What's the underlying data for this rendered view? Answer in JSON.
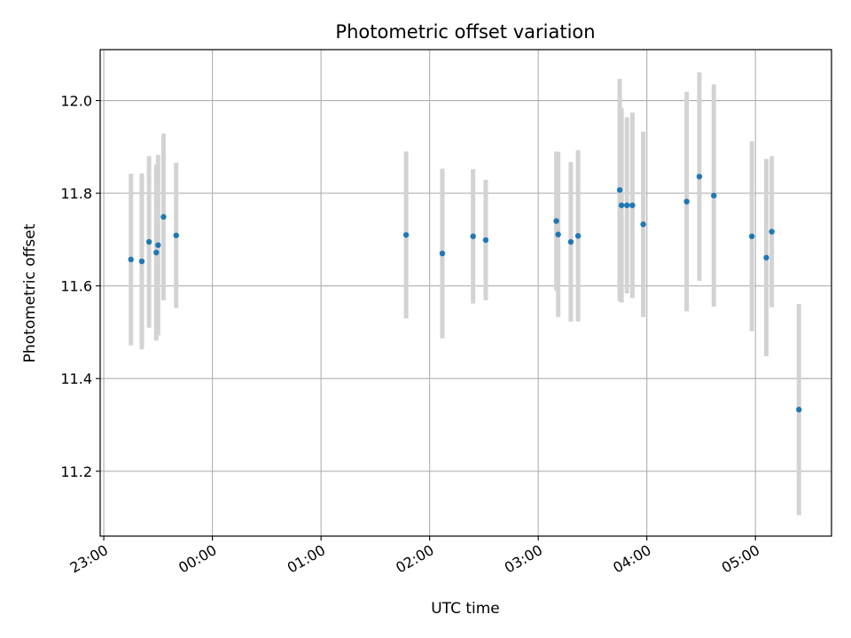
{
  "chart_data": {
    "type": "scatter",
    "title": "Photometric offset variation",
    "xlabel": "UTC time",
    "ylabel": "Photometric offset",
    "x_axis_type": "time",
    "xlim": [
      "22:58",
      "05:42"
    ],
    "ylim": [
      11.06,
      12.11
    ],
    "xticks": [
      "23:00",
      "00:00",
      "01:00",
      "02:00",
      "03:00",
      "04:00",
      "05:00"
    ],
    "yticks": [
      11.2,
      11.4,
      11.6,
      11.8,
      12.0
    ],
    "grid": true,
    "errorbar_color": "#d3d3d3",
    "marker_color": "#1f77b4",
    "points": [
      {
        "time": "23:15",
        "y": 11.657,
        "err": 0.185
      },
      {
        "time": "23:21",
        "y": 11.653,
        "err": 0.19
      },
      {
        "time": "23:25",
        "y": 11.695,
        "err": 0.185
      },
      {
        "time": "23:29",
        "y": 11.672,
        "err": 0.19
      },
      {
        "time": "23:30",
        "y": 11.688,
        "err": 0.195
      },
      {
        "time": "23:33",
        "y": 11.749,
        "err": 0.18
      },
      {
        "time": "23:40",
        "y": 11.709,
        "err": 0.157
      },
      {
        "time": "01:47",
        "y": 11.71,
        "err": 0.18
      },
      {
        "time": "02:07",
        "y": 11.67,
        "err": 0.183
      },
      {
        "time": "02:24",
        "y": 11.707,
        "err": 0.145
      },
      {
        "time": "02:31",
        "y": 11.699,
        "err": 0.13
      },
      {
        "time": "03:10",
        "y": 11.74,
        "err": 0.15
      },
      {
        "time": "03:11",
        "y": 11.711,
        "err": 0.178
      },
      {
        "time": "03:18",
        "y": 11.695,
        "err": 0.172
      },
      {
        "time": "03:22",
        "y": 11.708,
        "err": 0.185
      },
      {
        "time": "03:45",
        "y": 11.807,
        "err": 0.24
      },
      {
        "time": "03:46",
        "y": 11.774,
        "err": 0.21
      },
      {
        "time": "03:49",
        "y": 11.774,
        "err": 0.19
      },
      {
        "time": "03:52",
        "y": 11.774,
        "err": 0.2
      },
      {
        "time": "03:58",
        "y": 11.733,
        "err": 0.2
      },
      {
        "time": "04:22",
        "y": 11.782,
        "err": 0.237
      },
      {
        "time": "04:29",
        "y": 11.836,
        "err": 0.225
      },
      {
        "time": "04:37",
        "y": 11.795,
        "err": 0.24
      },
      {
        "time": "04:58",
        "y": 11.707,
        "err": 0.205
      },
      {
        "time": "05:06",
        "y": 11.661,
        "err": 0.213
      },
      {
        "time": "05:09",
        "y": 11.717,
        "err": 0.163
      },
      {
        "time": "05:24",
        "y": 11.333,
        "err": 0.228
      }
    ]
  }
}
